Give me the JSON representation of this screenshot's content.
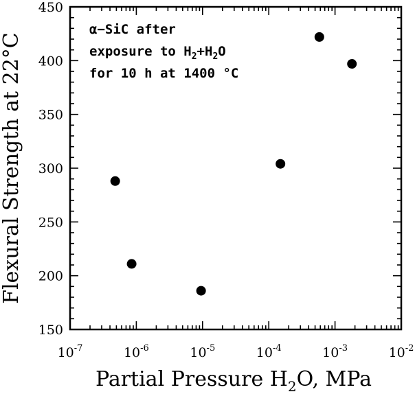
{
  "chart_data": {
    "type": "scatter",
    "title": "",
    "xlabel": "Partial Pressure H2O, MPa",
    "xlabel_parts": {
      "main": "Partial Pressure H",
      "sub": "2",
      "rest": "O, MPa"
    },
    "ylabel": "Flexural Strength at 22°C",
    "xscale": "log",
    "xlim": [
      1e-07,
      0.01
    ],
    "ylim": [
      150,
      450
    ],
    "x_ticks": [
      {
        "value": 1e-07,
        "base": "10",
        "exp": "-7"
      },
      {
        "value": 1e-06,
        "base": "10",
        "exp": "-6"
      },
      {
        "value": 1e-05,
        "base": "10",
        "exp": "-5"
      },
      {
        "value": 0.0001,
        "base": "10",
        "exp": "-4"
      },
      {
        "value": 0.001,
        "base": "10",
        "exp": "-3"
      },
      {
        "value": 0.01,
        "base": "10",
        "exp": "-2"
      }
    ],
    "y_ticks": [
      150,
      200,
      250,
      300,
      350,
      400,
      450
    ],
    "annotation": {
      "line1": "α−SiC after",
      "line2_pre": "exposure to H",
      "line2_sub1": "2",
      "line2_mid": "+H",
      "line2_sub2": "2",
      "line2_post": "O",
      "line3": "for 10 h at 1400 °C"
    },
    "grid": false,
    "legend": "none",
    "points": [
      {
        "x": 4.8e-07,
        "y": 288
      },
      {
        "x": 8.5e-07,
        "y": 211
      },
      {
        "x": 9.5e-06,
        "y": 186
      },
      {
        "x": 0.00015,
        "y": 304
      },
      {
        "x": 0.00058,
        "y": 422
      },
      {
        "x": 0.0018,
        "y": 397
      }
    ]
  }
}
